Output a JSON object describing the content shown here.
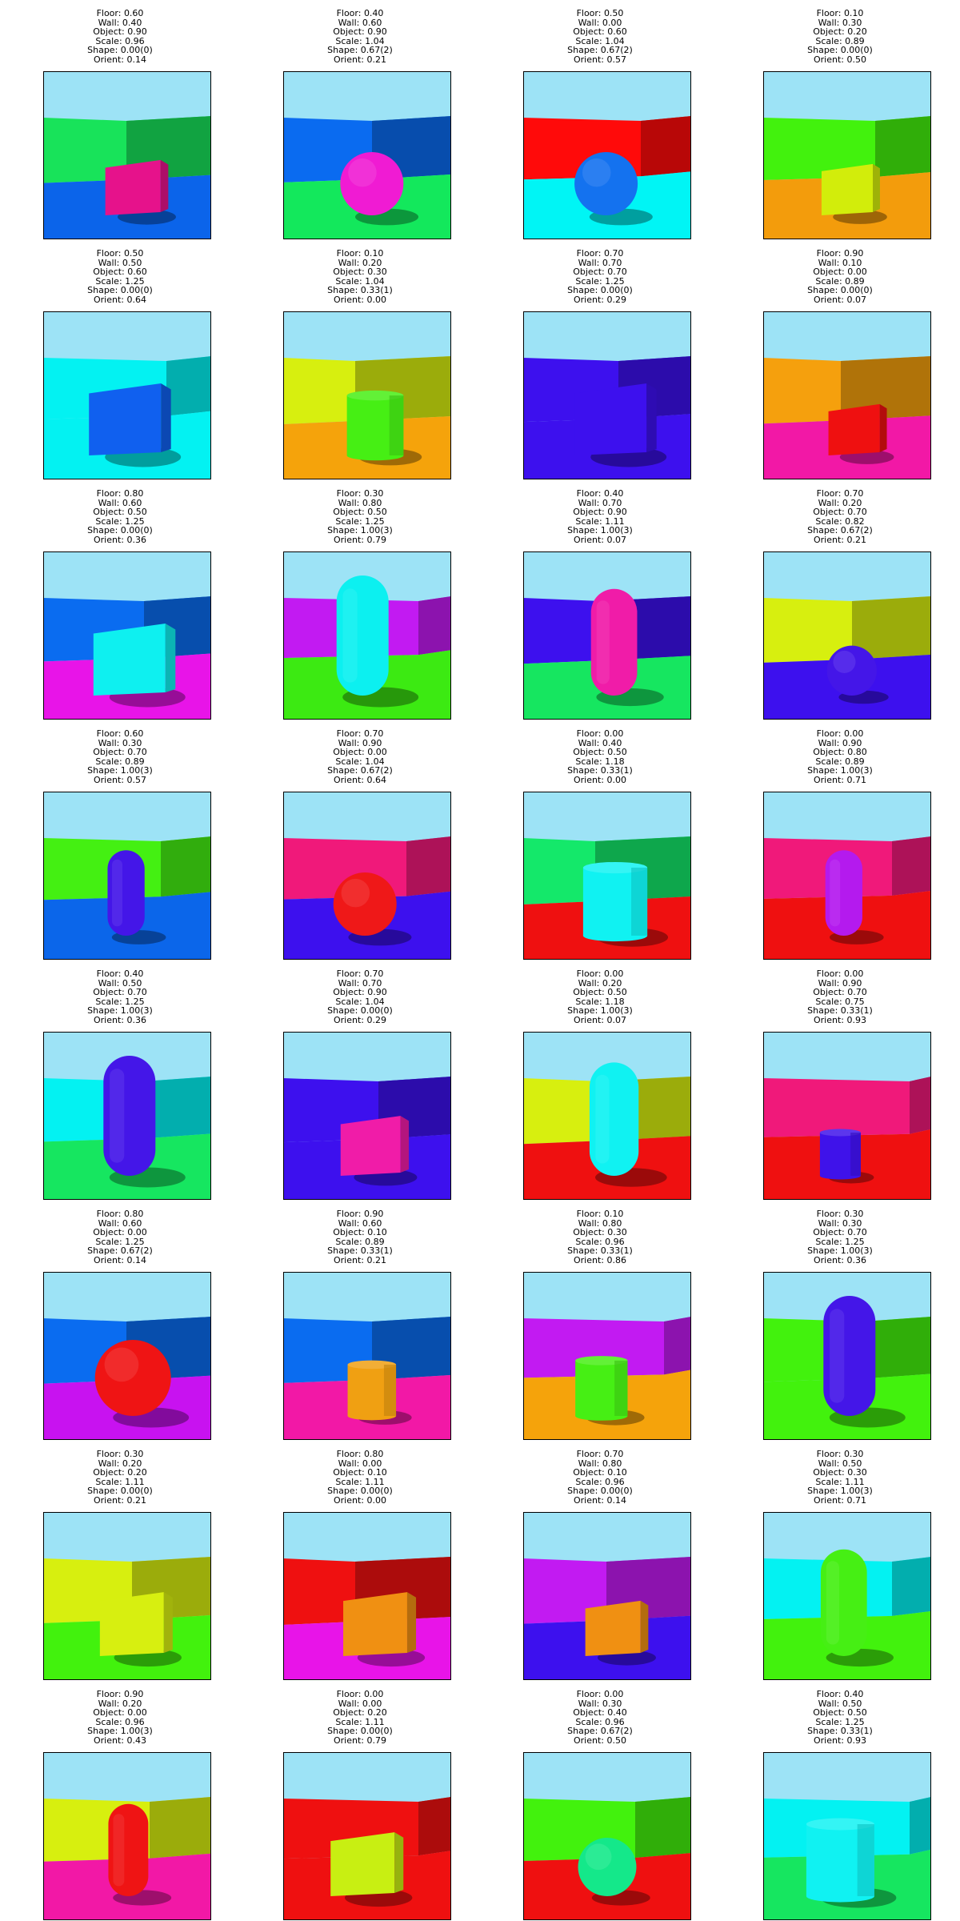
{
  "samples": [
    {
      "floor": "Floor: 0.60",
      "wall": "Wall: 0.40",
      "object": "Object: 0.90",
      "scale": "Scale: 0.96",
      "shape": "Shape: 0.00(0)",
      "orient": "Orient: 0.14",
      "shape_kind": "cube",
      "floor_color": "#0b64ea",
      "wall_color": "#18e35a",
      "object_color": "#e6128b",
      "size": 0.96,
      "orient_value": 0.14
    },
    {
      "floor": "Floor: 0.40",
      "wall": "Wall: 0.60",
      "object": "Object: 0.90",
      "scale": "Scale: 1.04",
      "shape": "Shape: 0.67(2)",
      "orient": "Orient: 0.21",
      "shape_kind": "sphere",
      "floor_color": "#13e85c",
      "wall_color": "#0a6bf0",
      "object_color": "#f01bd3",
      "size": 1.04,
      "orient_value": 0.21
    },
    {
      "floor": "Floor: 0.50",
      "wall": "Wall: 0.00",
      "object": "Object: 0.60",
      "scale": "Scale: 1.04",
      "shape": "Shape: 0.67(2)",
      "orient": "Orient: 0.57",
      "shape_kind": "sphere",
      "floor_color": "#00f5f5",
      "wall_color": "#ff0a0a",
      "object_color": "#1472ef",
      "size": 1.04,
      "orient_value": 0.57
    },
    {
      "floor": "Floor: 0.10",
      "wall": "Wall: 0.30",
      "object": "Object: 0.20",
      "scale": "Scale: 0.89",
      "shape": "Shape: 0.00(0)",
      "orient": "Orient: 0.50",
      "shape_kind": "cube",
      "floor_color": "#f39c0c",
      "wall_color": "#42f20d",
      "object_color": "#d2ed0b",
      "size": 0.89,
      "orient_value": 0.5
    },
    {
      "floor": "Floor: 0.50",
      "wall": "Wall: 0.50",
      "object": "Object: 0.60",
      "scale": "Scale: 1.25",
      "shape": "Shape: 0.00(0)",
      "orient": "Orient: 0.64",
      "shape_kind": "cube",
      "floor_color": "#03f2f2",
      "wall_color": "#03f2f2",
      "object_color": "#1060ef",
      "size": 1.25,
      "orient_value": 0.64
    },
    {
      "floor": "Floor: 0.10",
      "wall": "Wall: 0.20",
      "object": "Object: 0.30",
      "scale": "Scale: 1.04",
      "shape": "Shape: 0.33(1)",
      "orient": "Orient: 0.00",
      "shape_kind": "cylinder",
      "floor_color": "#f5a30b",
      "wall_color": "#d7ef0f",
      "object_color": "#46ef14",
      "size": 1.04,
      "orient_value": 0.0
    },
    {
      "floor": "Floor: 0.70",
      "wall": "Wall: 0.70",
      "object": "Object: 0.70",
      "scale": "Scale: 1.25",
      "shape": "Shape: 0.00(0)",
      "orient": "Orient: 0.29",
      "shape_kind": "cube",
      "floor_color": "#3d10ee",
      "wall_color": "#3d10ee",
      "object_color": "#3d10ee",
      "size": 1.25,
      "orient_value": 0.29
    },
    {
      "floor": "Floor: 0.90",
      "wall": "Wall: 0.10",
      "object": "Object: 0.00",
      "scale": "Scale: 0.89",
      "shape": "Shape: 0.00(0)",
      "orient": "Orient: 0.07",
      "shape_kind": "cube",
      "floor_color": "#f218a6",
      "wall_color": "#f5a00d",
      "object_color": "#ef1010",
      "size": 0.89,
      "orient_value": 0.07
    },
    {
      "floor": "Floor: 0.80",
      "wall": "Wall: 0.60",
      "object": "Object: 0.50",
      "scale": "Scale: 1.25",
      "shape": "Shape: 0.00(0)",
      "orient": "Orient: 0.36",
      "shape_kind": "cube",
      "floor_color": "#e814e8",
      "wall_color": "#0a6cf0",
      "object_color": "#0ef0f0",
      "size": 1.25,
      "orient_value": 0.36
    },
    {
      "floor": "Floor: 0.30",
      "wall": "Wall: 0.80",
      "object": "Object: 0.50",
      "scale": "Scale: 1.25",
      "shape": "Shape: 1.00(3)",
      "orient": "Orient: 0.79",
      "shape_kind": "capsule",
      "floor_color": "#3cea12",
      "wall_color": "#c21af2",
      "object_color": "#0cf0f0",
      "size": 1.25,
      "orient_value": 0.79
    },
    {
      "floor": "Floor: 0.40",
      "wall": "Wall: 0.70",
      "object": "Object: 0.90",
      "scale": "Scale: 1.11",
      "shape": "Shape: 1.00(3)",
      "orient": "Orient: 0.07",
      "shape_kind": "capsule",
      "floor_color": "#16e660",
      "wall_color": "#3d10ee",
      "object_color": "#f01ca8",
      "size": 1.11,
      "orient_value": 0.07
    },
    {
      "floor": "Floor: 0.70",
      "wall": "Wall: 0.20",
      "object": "Object: 0.70",
      "scale": "Scale: 0.82",
      "shape": "Shape: 0.67(2)",
      "orient": "Orient: 0.21",
      "shape_kind": "sphere",
      "floor_color": "#3d10ee",
      "wall_color": "#d7ef0f",
      "object_color": "#4416e8",
      "size": 0.82,
      "orient_value": 0.21
    },
    {
      "floor": "Floor: 0.60",
      "wall": "Wall: 0.30",
      "object": "Object: 0.70",
      "scale": "Scale: 0.89",
      "shape": "Shape: 1.00(3)",
      "orient": "Orient: 0.57",
      "shape_kind": "capsule",
      "floor_color": "#0b66ea",
      "wall_color": "#44f012",
      "object_color": "#4416e8",
      "size": 0.89,
      "orient_value": 0.57
    },
    {
      "floor": "Floor: 0.70",
      "wall": "Wall: 0.90",
      "object": "Object: 0.00",
      "scale": "Scale: 1.04",
      "shape": "Shape: 0.67(2)",
      "orient": "Orient: 0.64",
      "shape_kind": "sphere",
      "floor_color": "#3d10ee",
      "wall_color": "#f0197a",
      "object_color": "#ef1818",
      "size": 1.04,
      "orient_value": 0.64
    },
    {
      "floor": "Floor: 0.00",
      "wall": "Wall: 0.40",
      "object": "Object: 0.50",
      "scale": "Scale: 1.18",
      "shape": "Shape: 0.33(1)",
      "orient": "Orient: 0.00",
      "shape_kind": "cylinder",
      "floor_color": "#ef1010",
      "wall_color": "#14e86a",
      "object_color": "#10f2f2",
      "size": 1.18,
      "orient_value": 0.0
    },
    {
      "floor": "Floor: 0.00",
      "wall": "Wall: 0.90",
      "object": "Object: 0.80",
      "scale": "Scale: 0.89",
      "shape": "Shape: 1.00(3)",
      "orient": "Orient: 0.71",
      "shape_kind": "capsule",
      "floor_color": "#ef1010",
      "wall_color": "#f0197a",
      "object_color": "#b41aee",
      "size": 0.89,
      "orient_value": 0.71
    },
    {
      "floor": "Floor: 0.40",
      "wall": "Wall: 0.50",
      "object": "Object: 0.70",
      "scale": "Scale: 1.25",
      "shape": "Shape: 1.00(3)",
      "orient": "Orient: 0.36",
      "shape_kind": "capsule",
      "floor_color": "#16e660",
      "wall_color": "#03f2f2",
      "object_color": "#4416e8",
      "size": 1.25,
      "orient_value": 0.36
    },
    {
      "floor": "Floor: 0.70",
      "wall": "Wall: 0.70",
      "object": "Object: 0.90",
      "scale": "Scale: 1.04",
      "shape": "Shape: 0.00(0)",
      "orient": "Orient: 0.29",
      "shape_kind": "cube",
      "floor_color": "#3d10ee",
      "wall_color": "#3d10ee",
      "object_color": "#f01ca8",
      "size": 1.04,
      "orient_value": 0.29
    },
    {
      "floor": "Floor: 0.00",
      "wall": "Wall: 0.20",
      "object": "Object: 0.50",
      "scale": "Scale: 1.18",
      "shape": "Shape: 1.00(3)",
      "orient": "Orient: 0.07",
      "shape_kind": "capsule",
      "floor_color": "#ef1010",
      "wall_color": "#d7ef0f",
      "object_color": "#10f2f2",
      "size": 1.18,
      "orient_value": 0.07
    },
    {
      "floor": "Floor: 0.00",
      "wall": "Wall: 0.90",
      "object": "Object: 0.70",
      "scale": "Scale: 0.75",
      "shape": "Shape: 0.33(1)",
      "orient": "Orient: 0.93",
      "shape_kind": "cylinder",
      "floor_color": "#ef1010",
      "wall_color": "#f0197a",
      "object_color": "#3f12ea",
      "size": 0.75,
      "orient_value": 0.93
    },
    {
      "floor": "Floor: 0.80",
      "wall": "Wall: 0.60",
      "object": "Object: 0.00",
      "scale": "Scale: 1.25",
      "shape": "Shape: 0.67(2)",
      "orient": "Orient: 0.14",
      "shape_kind": "sphere",
      "floor_color": "#c812f0",
      "wall_color": "#0a6cf0",
      "object_color": "#ef1414",
      "size": 1.25,
      "orient_value": 0.14
    },
    {
      "floor": "Floor: 0.90",
      "wall": "Wall: 0.60",
      "object": "Object: 0.10",
      "scale": "Scale: 0.89",
      "shape": "Shape: 0.33(1)",
      "orient": "Orient: 0.21",
      "shape_kind": "cylinder",
      "floor_color": "#f218a6",
      "wall_color": "#0a6cf0",
      "object_color": "#f0a012",
      "size": 0.89,
      "orient_value": 0.21
    },
    {
      "floor": "Floor: 0.10",
      "wall": "Wall: 0.80",
      "object": "Object: 0.30",
      "scale": "Scale: 0.96",
      "shape": "Shape: 0.33(1)",
      "orient": "Orient: 0.86",
      "shape_kind": "cylinder",
      "floor_color": "#f5a30b",
      "wall_color": "#c21af2",
      "object_color": "#46ef14",
      "size": 0.96,
      "orient_value": 0.86
    },
    {
      "floor": "Floor: 0.30",
      "wall": "Wall: 0.30",
      "object": "Object: 0.70",
      "scale": "Scale: 1.25",
      "shape": "Shape: 1.00(3)",
      "orient": "Orient: 0.36",
      "shape_kind": "capsule",
      "floor_color": "#42f20d",
      "wall_color": "#42f20d",
      "object_color": "#4416e8",
      "size": 1.25,
      "orient_value": 0.36
    },
    {
      "floor": "Floor: 0.30",
      "wall": "Wall: 0.20",
      "object": "Object: 0.20",
      "scale": "Scale: 1.11",
      "shape": "Shape: 0.00(0)",
      "orient": "Orient: 0.21",
      "shape_kind": "cube",
      "floor_color": "#42f20d",
      "wall_color": "#d7ef0f",
      "object_color": "#d7ef10",
      "size": 1.11,
      "orient_value": 0.21
    },
    {
      "floor": "Floor: 0.80",
      "wall": "Wall: 0.00",
      "object": "Object: 0.10",
      "scale": "Scale: 1.11",
      "shape": "Shape: 0.00(0)",
      "orient": "Orient: 0.00",
      "shape_kind": "cube",
      "floor_color": "#e814e8",
      "wall_color": "#ef1010",
      "object_color": "#f09012",
      "size": 1.11,
      "orient_value": 0.0
    },
    {
      "floor": "Floor: 0.70",
      "wall": "Wall: 0.80",
      "object": "Object: 0.10",
      "scale": "Scale: 0.96",
      "shape": "Shape: 0.00(0)",
      "orient": "Orient: 0.14",
      "shape_kind": "cube",
      "floor_color": "#3d10ee",
      "wall_color": "#c21af2",
      "object_color": "#f09012",
      "size": 0.96,
      "orient_value": 0.14
    },
    {
      "floor": "Floor: 0.30",
      "wall": "Wall: 0.50",
      "object": "Object: 0.30",
      "scale": "Scale: 1.11",
      "shape": "Shape: 1.00(3)",
      "orient": "Orient: 0.71",
      "shape_kind": "capsule",
      "floor_color": "#42f20d",
      "wall_color": "#03f2f2",
      "object_color": "#46ef14",
      "size": 1.11,
      "orient_value": 0.71
    },
    {
      "floor": "Floor: 0.90",
      "wall": "Wall: 0.20",
      "object": "Object: 0.00",
      "scale": "Scale: 0.96",
      "shape": "Shape: 1.00(3)",
      "orient": "Orient: 0.43",
      "shape_kind": "capsule",
      "floor_color": "#f218a6",
      "wall_color": "#d7ef0f",
      "object_color": "#ef1414",
      "size": 0.96,
      "orient_value": 0.43
    },
    {
      "floor": "Floor: 0.00",
      "wall": "Wall: 0.00",
      "object": "Object: 0.20",
      "scale": "Scale: 1.11",
      "shape": "Shape: 0.00(0)",
      "orient": "Orient: 0.79",
      "shape_kind": "cube",
      "floor_color": "#ef1010",
      "wall_color": "#ef1010",
      "object_color": "#c8ef12",
      "size": 1.11,
      "orient_value": 0.79
    },
    {
      "floor": "Floor: 0.00",
      "wall": "Wall: 0.30",
      "object": "Object: 0.40",
      "scale": "Scale: 0.96",
      "shape": "Shape: 0.67(2)",
      "orient": "Orient: 0.50",
      "shape_kind": "sphere",
      "floor_color": "#ef1010",
      "wall_color": "#42f20d",
      "object_color": "#14e88a",
      "size": 0.96,
      "orient_value": 0.5
    },
    {
      "floor": "Floor: 0.40",
      "wall": "Wall: 0.50",
      "object": "Object: 0.50",
      "scale": "Scale: 1.25",
      "shape": "Shape: 0.33(1)",
      "orient": "Orient: 0.93",
      "shape_kind": "cylinder",
      "floor_color": "#16e660",
      "wall_color": "#03f2f2",
      "object_color": "#10f2f2",
      "size": 1.25,
      "orient_value": 0.93
    }
  ],
  "colors": {
    "sky": "#9de3f6",
    "border": "#000000",
    "shadow": "#000000"
  }
}
